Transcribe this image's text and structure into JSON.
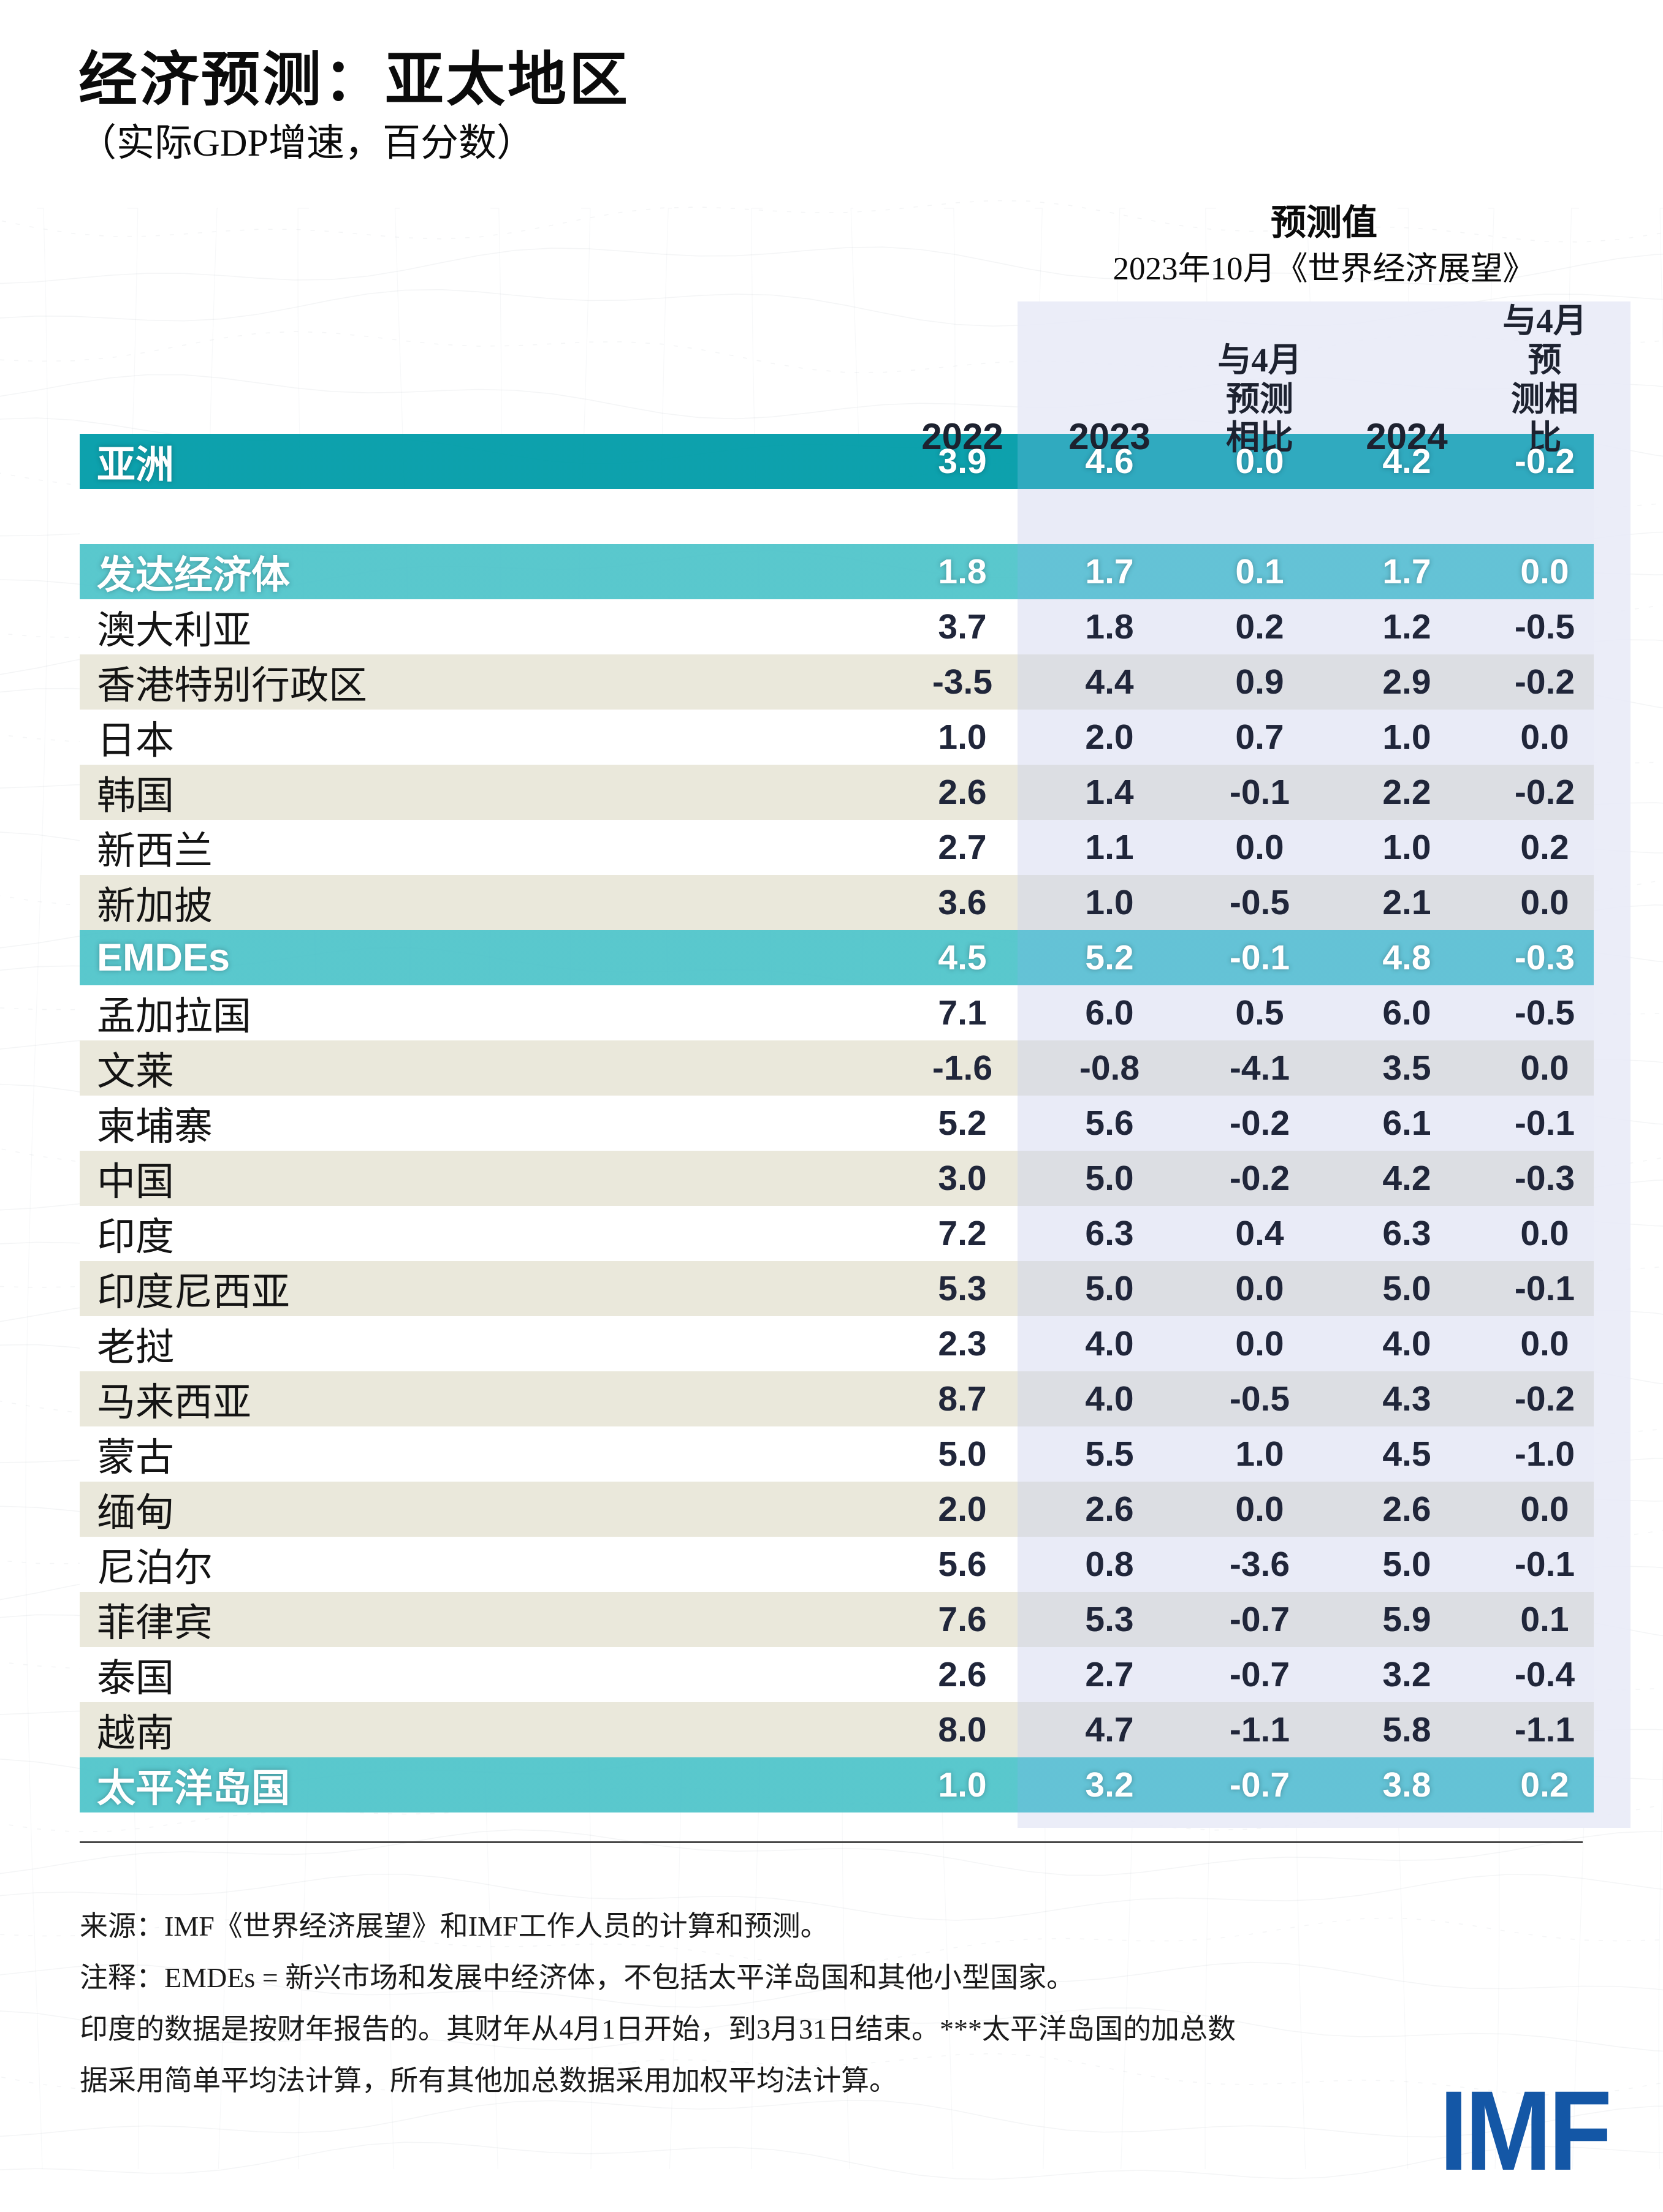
{
  "title": "经济预测：亚太地区",
  "subtitle": "（实际GDP增速，百分数）",
  "forecast_header": {
    "label": "预测值",
    "source_line": "2023年10月《世界经济展望》"
  },
  "columns": [
    "2022",
    "2023",
    "与4月\n预测\n相比",
    "2024",
    "与4月预\n测相比"
  ],
  "rows": [
    {
      "label": "亚洲",
      "type": "dark",
      "values": [
        "3.9",
        "4.6",
        "0.0",
        "4.2",
        "-0.2"
      ]
    },
    {
      "label": "",
      "type": "spacer",
      "values": [
        "",
        "",
        "",
        "",
        ""
      ]
    },
    {
      "label": "发达经济体",
      "type": "agg",
      "values": [
        "1.8",
        "1.7",
        "0.1",
        "1.7",
        "0.0"
      ]
    },
    {
      "label": "澳大利亚",
      "type": "white",
      "values": [
        "3.7",
        "1.8",
        "0.2",
        "1.2",
        "-0.5"
      ]
    },
    {
      "label": "香港特别行政区",
      "type": "beige",
      "values": [
        "-3.5",
        "4.4",
        "0.9",
        "2.9",
        "-0.2"
      ]
    },
    {
      "label": "日本",
      "type": "white",
      "values": [
        "1.0",
        "2.0",
        "0.7",
        "1.0",
        "0.0"
      ]
    },
    {
      "label": "韩国",
      "type": "beige",
      "values": [
        "2.6",
        "1.4",
        "-0.1",
        "2.2",
        "-0.2"
      ]
    },
    {
      "label": "新西兰",
      "type": "white",
      "values": [
        "2.7",
        "1.1",
        "0.0",
        "1.0",
        "0.2"
      ]
    },
    {
      "label": "新加披",
      "type": "beige",
      "values": [
        "3.6",
        "1.0",
        "-0.5",
        "2.1",
        "0.0"
      ]
    },
    {
      "label": "EMDEs",
      "type": "agg",
      "values": [
        "4.5",
        "5.2",
        "-0.1",
        "4.8",
        "-0.3"
      ]
    },
    {
      "label": "孟加拉国",
      "type": "white",
      "values": [
        "7.1",
        "6.0",
        "0.5",
        "6.0",
        "-0.5"
      ]
    },
    {
      "label": "文莱",
      "type": "beige",
      "values": [
        "-1.6",
        "-0.8",
        "-4.1",
        "3.5",
        "0.0"
      ]
    },
    {
      "label": "柬埔寨",
      "type": "white",
      "values": [
        "5.2",
        "5.6",
        "-0.2",
        "6.1",
        "-0.1"
      ]
    },
    {
      "label": "中国",
      "type": "beige",
      "values": [
        "3.0",
        "5.0",
        "-0.2",
        "4.2",
        "-0.3"
      ]
    },
    {
      "label": "印度",
      "type": "white",
      "values": [
        "7.2",
        "6.3",
        "0.4",
        "6.3",
        "0.0"
      ]
    },
    {
      "label": "印度尼西亚",
      "type": "beige",
      "values": [
        "5.3",
        "5.0",
        "0.0",
        "5.0",
        "-0.1"
      ]
    },
    {
      "label": "老挝",
      "type": "white",
      "values": [
        "2.3",
        "4.0",
        "0.0",
        "4.0",
        "0.0"
      ]
    },
    {
      "label": "马来西亚",
      "type": "beige",
      "values": [
        "8.7",
        "4.0",
        "-0.5",
        "4.3",
        "-0.2"
      ]
    },
    {
      "label": "蒙古",
      "type": "white",
      "values": [
        "5.0",
        "5.5",
        "1.0",
        "4.5",
        "-1.0"
      ]
    },
    {
      "label": "缅甸",
      "type": "beige",
      "values": [
        "2.0",
        "2.6",
        "0.0",
        "2.6",
        "0.0"
      ]
    },
    {
      "label": "尼泊尔",
      "type": "white",
      "values": [
        "5.6",
        "0.8",
        "-3.6",
        "5.0",
        "-0.1"
      ]
    },
    {
      "label": "菲律宾",
      "type": "beige",
      "values": [
        "7.6",
        "5.3",
        "-0.7",
        "5.9",
        "0.1"
      ]
    },
    {
      "label": "泰国",
      "type": "white",
      "values": [
        "2.6",
        "2.7",
        "-0.7",
        "3.2",
        "-0.4"
      ]
    },
    {
      "label": "越南",
      "type": "beige",
      "values": [
        "8.0",
        "4.7",
        "-1.1",
        "5.8",
        "-1.1"
      ]
    },
    {
      "label": "太平洋岛国",
      "type": "agg",
      "values": [
        "1.0",
        "3.2",
        "-0.7",
        "3.8",
        "0.2"
      ]
    }
  ],
  "footer": {
    "lines": [
      "来源：IMF《世界经济展望》和IMF工作人员的计算和预测。",
      "注释：EMDEs = 新兴市场和发展中经济体，不包括太平洋岛国和其他小型国家。",
      "印度的数据是按财年报告的。其财年从4月1日开始，到3月31日结束。***太平洋岛国的加总数",
      "据采用简单平均法计算，所有其他加总数据采用加权平均法计算。"
    ]
  },
  "logo": "IMF",
  "colors": {
    "teal_dark": "#059eaa",
    "teal_light": "#4fc4ca",
    "beige": "#eae8db",
    "lavender_forecast_band": "#e9ebf7",
    "imf_blue": "#1457a6",
    "number_text": "#20263a"
  },
  "chart_data": {
    "type": "table",
    "title": "经济预测：亚太地区",
    "subtitle": "（实际GDP增速，百分数）",
    "forecast_note": "预测值 — 2023年10月《世界经济展望》",
    "columns": [
      "2022",
      "2023",
      "与4月预测相比",
      "2024",
      "与4月预测相比"
    ],
    "categories": [
      "亚洲",
      "发达经济体",
      "澳大利亚",
      "香港特别行政区",
      "日本",
      "韩国",
      "新西兰",
      "新加披",
      "EMDEs",
      "孟加拉国",
      "文莱",
      "柬埔寨",
      "中国",
      "印度",
      "印度尼西亚",
      "老挝",
      "马来西亚",
      "蒙古",
      "缅甸",
      "尼泊尔",
      "菲律宾",
      "泰国",
      "越南",
      "太平洋岛国"
    ],
    "series": [
      {
        "name": "2022",
        "values": [
          3.9,
          1.8,
          3.7,
          -3.5,
          1.0,
          2.6,
          2.7,
          3.6,
          4.5,
          7.1,
          -1.6,
          5.2,
          3.0,
          7.2,
          5.3,
          2.3,
          8.7,
          5.0,
          2.0,
          5.6,
          7.6,
          2.6,
          8.0,
          1.0
        ]
      },
      {
        "name": "2023",
        "values": [
          4.6,
          1.7,
          1.8,
          4.4,
          2.0,
          1.4,
          1.1,
          1.0,
          5.2,
          6.0,
          -0.8,
          5.6,
          5.0,
          6.3,
          5.0,
          4.0,
          4.0,
          5.5,
          2.6,
          0.8,
          5.3,
          2.7,
          4.7,
          3.2
        ]
      },
      {
        "name": "2023与4月预测相比",
        "values": [
          0.0,
          0.1,
          0.2,
          0.9,
          0.7,
          -0.1,
          0.0,
          -0.5,
          -0.1,
          0.5,
          -4.1,
          -0.2,
          -0.2,
          0.4,
          0.0,
          0.0,
          -0.5,
          1.0,
          0.0,
          -3.6,
          -0.7,
          -0.7,
          -1.1,
          -0.7
        ]
      },
      {
        "name": "2024",
        "values": [
          4.2,
          1.7,
          1.2,
          2.9,
          1.0,
          2.2,
          1.0,
          2.1,
          4.8,
          6.0,
          3.5,
          6.1,
          4.2,
          6.3,
          5.0,
          4.0,
          4.3,
          4.5,
          2.6,
          5.0,
          5.9,
          3.2,
          5.8,
          3.8
        ]
      },
      {
        "name": "2024与4月预测相比",
        "values": [
          -0.2,
          0.0,
          -0.5,
          -0.2,
          0.0,
          -0.2,
          0.2,
          0.0,
          -0.3,
          -0.5,
          0.0,
          -0.1,
          -0.3,
          0.0,
          -0.1,
          0.0,
          -0.2,
          -1.0,
          0.0,
          -0.1,
          0.1,
          -0.4,
          -1.1,
          0.2
        ]
      }
    ]
  }
}
